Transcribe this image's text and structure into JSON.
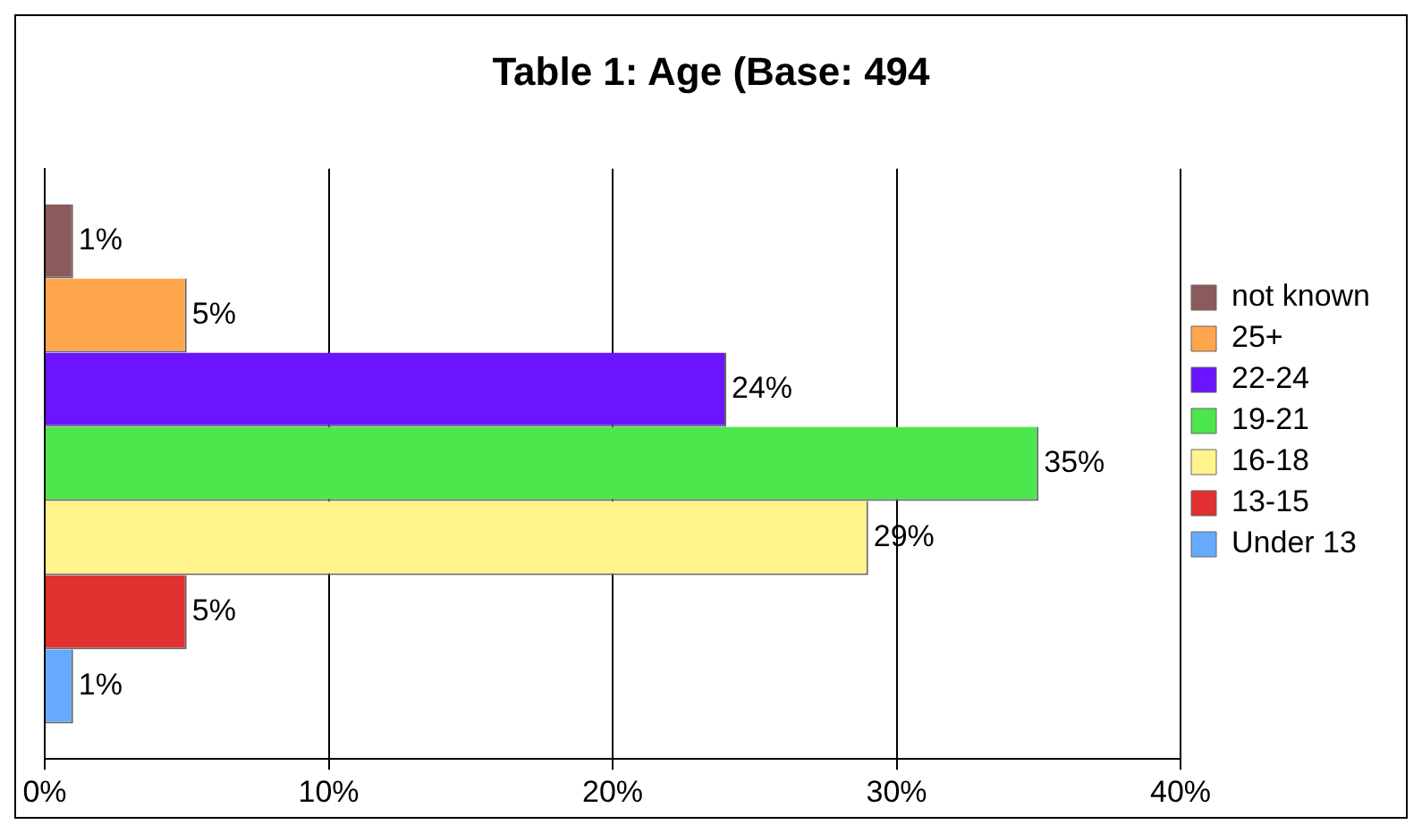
{
  "chart_data": {
    "type": "bar",
    "orientation": "horizontal",
    "title": "Table 1: Age (Base: 494",
    "categories": [
      null
    ],
    "series": [
      {
        "name": "not known",
        "color": "#8b5a5a",
        "values": [
          1
        ],
        "value_labels": [
          "1%"
        ]
      },
      {
        "name": "25+",
        "color": "#ffa64d",
        "values": [
          5
        ],
        "value_labels": [
          "5%"
        ]
      },
      {
        "name": "22-24",
        "color": "#6a14ff",
        "values": [
          24
        ],
        "value_labels": [
          "24%"
        ]
      },
      {
        "name": "19-21",
        "color": "#4de64d",
        "values": [
          35
        ],
        "value_labels": [
          "35%"
        ]
      },
      {
        "name": "16-18",
        "color": "#fff48c",
        "values": [
          29
        ],
        "value_labels": [
          "29%"
        ]
      },
      {
        "name": "13-15",
        "color": "#e03030",
        "values": [
          5
        ],
        "value_labels": [
          "5%"
        ]
      },
      {
        "name": "Under 13",
        "color": "#66aaff",
        "values": [
          1
        ],
        "value_labels": [
          "1%"
        ]
      }
    ],
    "xlim": [
      0,
      40
    ],
    "xticks": [
      {
        "value": 0,
        "label": "0%"
      },
      {
        "value": 10,
        "label": "10%"
      },
      {
        "value": 20,
        "label": "20%"
      },
      {
        "value": 30,
        "label": "30%"
      },
      {
        "value": 40,
        "label": "40%"
      }
    ],
    "grid": "x",
    "legend": "right"
  }
}
